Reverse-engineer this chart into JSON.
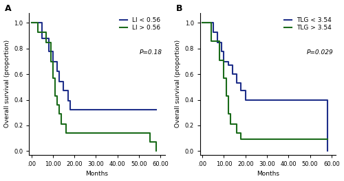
{
  "panel_A": {
    "title": "A",
    "legend_labels": [
      "LI < 0.56",
      "LI > 0.56"
    ],
    "pvalue": "P=0.18",
    "low_x": [
      0,
      5,
      8,
      10,
      12,
      13,
      15,
      17,
      18,
      22,
      32,
      58
    ],
    "low_y": [
      1.0,
      0.88,
      0.78,
      0.7,
      0.62,
      0.54,
      0.47,
      0.39,
      0.32,
      0.32,
      0.32,
      0.32
    ],
    "high_x": [
      0,
      3,
      7,
      9,
      10,
      11,
      12,
      13,
      14,
      16,
      20,
      55,
      58
    ],
    "high_y": [
      1.0,
      0.93,
      0.85,
      0.7,
      0.57,
      0.43,
      0.36,
      0.29,
      0.21,
      0.14,
      0.14,
      0.07,
      0.0
    ],
    "xlim": [
      -1,
      62
    ],
    "ylim": [
      -0.03,
      1.08
    ],
    "xticks": [
      0,
      10,
      20,
      30,
      40,
      50,
      60
    ],
    "xticklabels": [
      ".00",
      "10.00",
      "20.00",
      "30.00",
      "40.00",
      "50.00",
      "60.00"
    ],
    "yticks": [
      0.0,
      0.2,
      0.4,
      0.6,
      0.8,
      1.0
    ],
    "xlabel": "Months",
    "ylabel": "Overall survival (proportion)"
  },
  "panel_B": {
    "title": "B",
    "legend_labels": [
      "TLG < 3.54",
      "TLG > 3.54"
    ],
    "pvalue": "P=0.029",
    "low_x": [
      0,
      5,
      7,
      9,
      10,
      12,
      14,
      16,
      18,
      20,
      30,
      58
    ],
    "low_y": [
      1.0,
      0.93,
      0.85,
      0.78,
      0.7,
      0.67,
      0.6,
      0.53,
      0.47,
      0.4,
      0.4,
      0.0
    ],
    "high_x": [
      0,
      4,
      8,
      10,
      11,
      12,
      13,
      16,
      18,
      22,
      58
    ],
    "high_y": [
      1.0,
      0.86,
      0.71,
      0.57,
      0.43,
      0.29,
      0.21,
      0.14,
      0.09,
      0.09,
      0.09
    ],
    "xlim": [
      -1,
      62
    ],
    "ylim": [
      -0.03,
      1.08
    ],
    "xticks": [
      0,
      10,
      20,
      30,
      40,
      50,
      60
    ],
    "xticklabels": [
      ".00",
      "10.00",
      "20.00",
      "30.00",
      "40.00",
      "50.00",
      "60.00"
    ],
    "yticks": [
      0.0,
      0.2,
      0.4,
      0.6,
      0.8,
      1.0
    ],
    "xlabel": "Months",
    "ylabel": "Overall survival (proportion)"
  },
  "color_low": "#1f2f8a",
  "color_high": "#1a6b1a",
  "background_color": "#ffffff",
  "linewidth": 1.5,
  "fontsize_label": 6.5,
  "fontsize_tick": 6.0,
  "fontsize_legend": 6.5,
  "fontsize_title": 9,
  "fontsize_pvalue": 6.5
}
